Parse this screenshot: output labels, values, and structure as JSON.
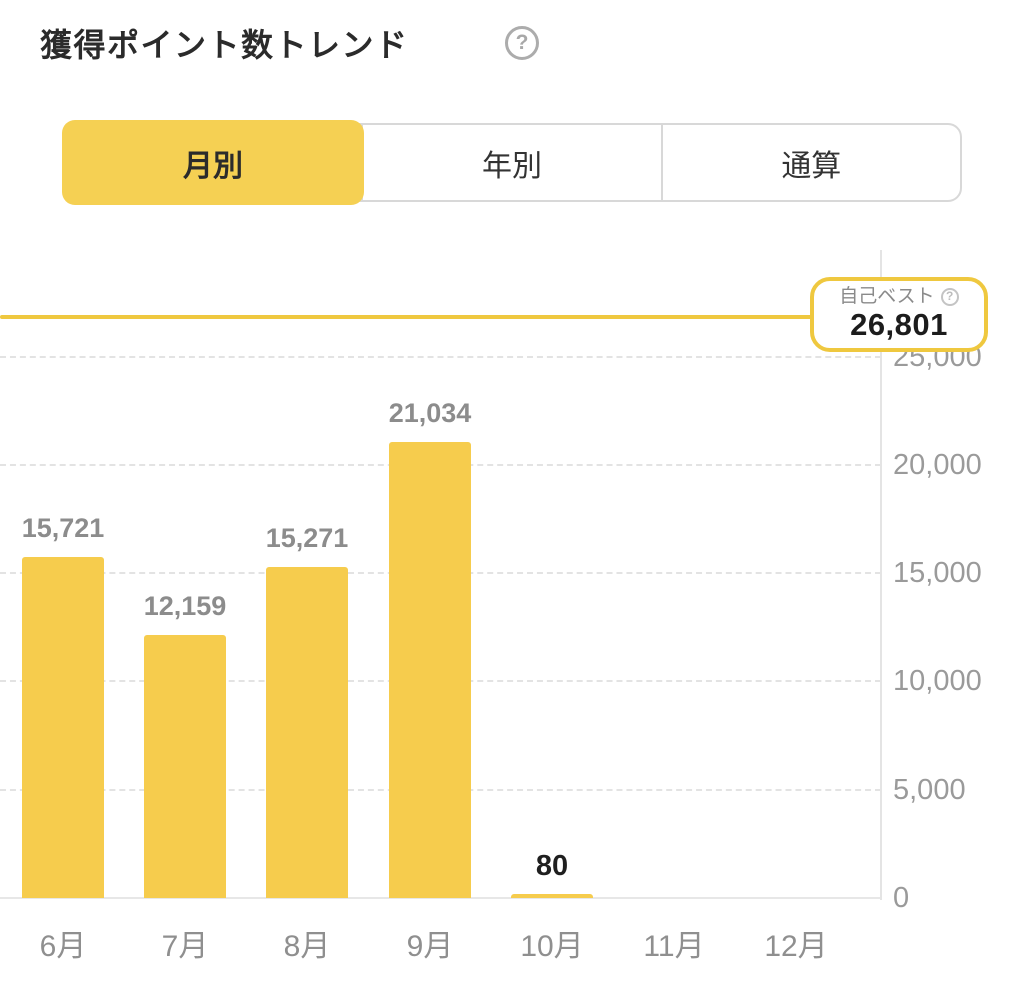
{
  "header": {
    "title": "獲得ポイント数トレンド",
    "help_icon": "?"
  },
  "tabs": {
    "items": [
      {
        "label": "月別",
        "active": true
      },
      {
        "label": "年別",
        "active": false
      },
      {
        "label": "通算",
        "active": false
      }
    ]
  },
  "personal_best": {
    "label": "自己ベスト",
    "help_icon": "?",
    "value": 26801,
    "value_display": "26,801"
  },
  "chart_data": {
    "type": "bar",
    "title": "獲得ポイント数トレンド",
    "categories": [
      "6月",
      "7月",
      "8月",
      "9月",
      "10月",
      "11月",
      "12月"
    ],
    "values": [
      15721,
      12159,
      15271,
      21034,
      80,
      null,
      null
    ],
    "value_labels": [
      "15,721",
      "12,159",
      "15,271",
      "21,034",
      "80",
      "",
      ""
    ],
    "emphasized_index": 4,
    "y_ticks": [
      25000,
      20000,
      15000,
      10000,
      5000,
      0
    ],
    "y_tick_labels": [
      "25,000",
      "20,000",
      "15,000",
      "10,000",
      "5,000",
      "0"
    ],
    "ylim": [
      0,
      25000
    ],
    "grid": "dashed-horizontal",
    "legend": "none",
    "reference_line": {
      "label": "自己ベスト",
      "value": 26801
    },
    "colors": {
      "bar": "#f6cc4d",
      "reference_line": "#efc83f",
      "active_tab": "#f5d053",
      "value_label": "#8c8c8c",
      "value_label_emphasis": "#1f1f1f",
      "axis_label": "#9a9a9a",
      "gridline": "#e3e3e3"
    }
  }
}
